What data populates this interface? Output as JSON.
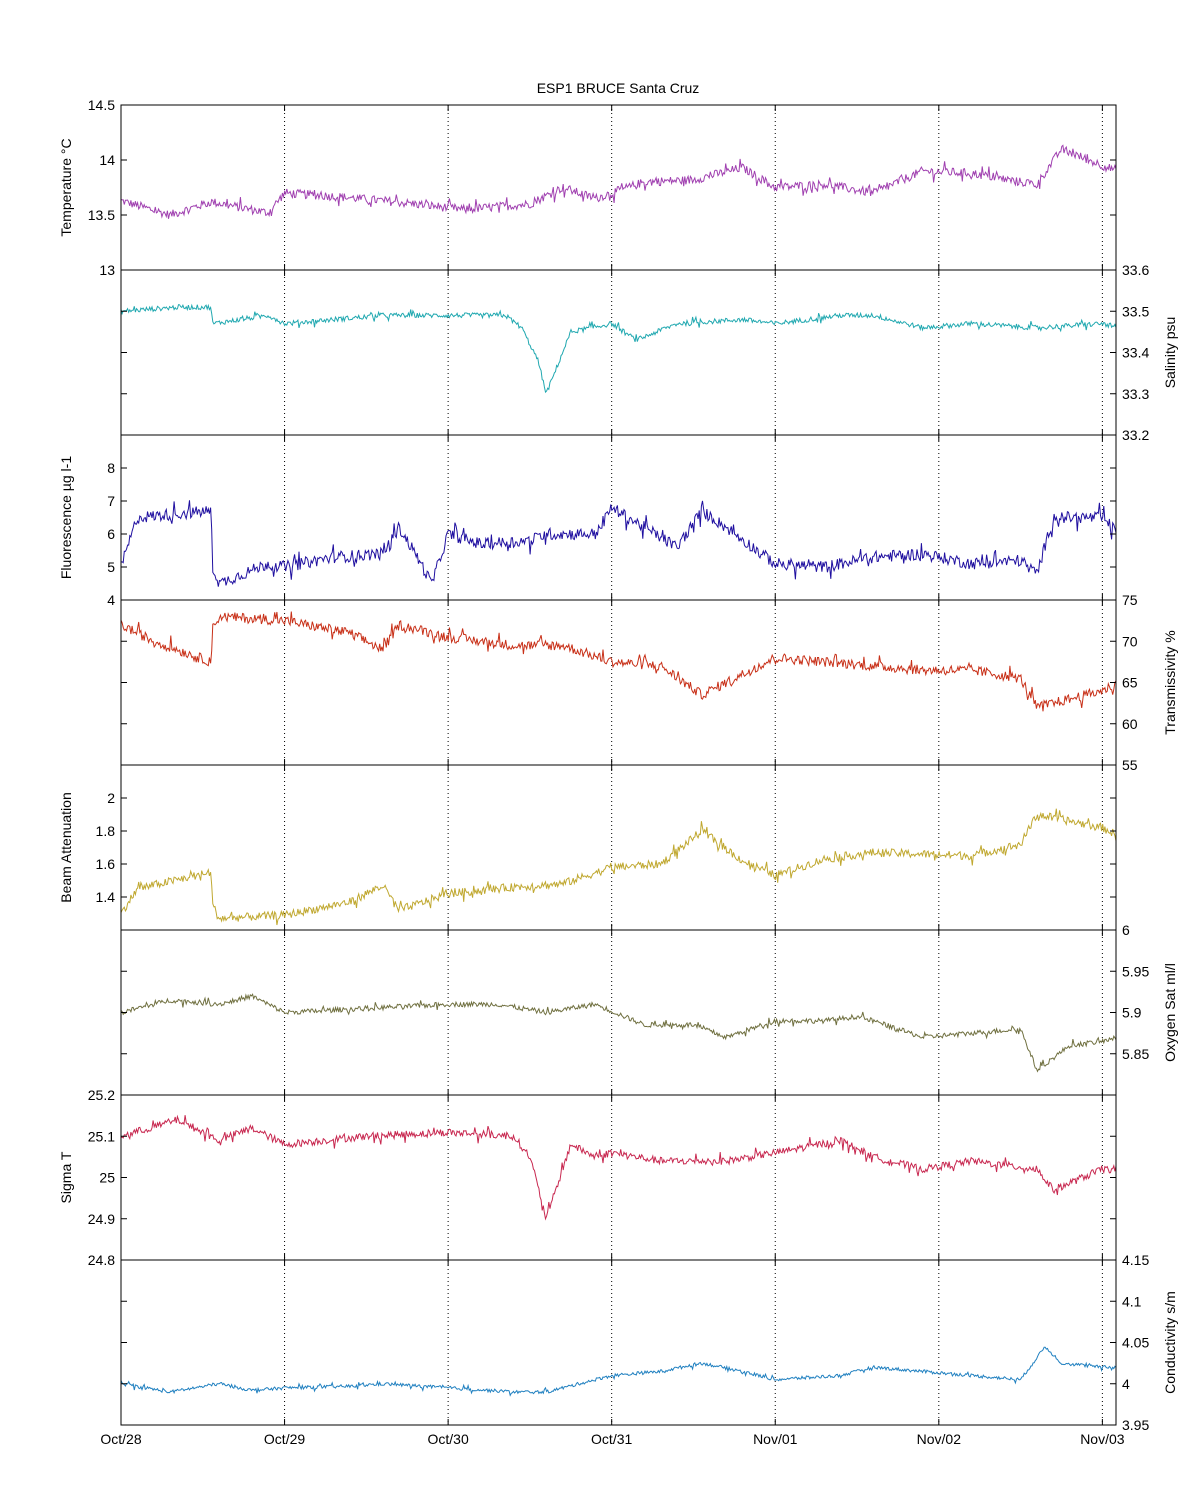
{
  "figure": {
    "title": "ESP1 BRUCE Santa Cruz"
  },
  "x_axis": {
    "tick_labels": [
      "Oct/28",
      "Oct/29",
      "Oct/30",
      "Oct/31",
      "Nov/01",
      "Nov/02",
      "Nov/03"
    ],
    "range": [
      "2006-10-28T00:00",
      "2006-11-03T02:00"
    ]
  },
  "chart_data": [
    {
      "type": "line",
      "ylabel": "Temperature °C",
      "axis_side": "left",
      "ylim": [
        13,
        14.5
      ],
      "yticks": [
        13,
        13.5,
        14,
        14.5
      ],
      "color": "#a040b0",
      "noise": 0.04,
      "series": [
        {
          "x": [
            0,
            0.3,
            0.55,
            0.9,
            1.0,
            1.3,
            1.6,
            1.8,
            2.1,
            2.5,
            2.7,
            2.9,
            3.2,
            3.5,
            3.8,
            4.0,
            4.3,
            4.6,
            4.9,
            5.2,
            5.5,
            5.6,
            5.75,
            6.0,
            6.1
          ],
          "y": [
            13.63,
            13.5,
            13.62,
            13.52,
            13.7,
            13.67,
            13.63,
            13.6,
            13.55,
            13.6,
            13.75,
            13.65,
            13.8,
            13.82,
            13.93,
            13.75,
            13.78,
            13.7,
            13.9,
            13.88,
            13.8,
            13.78,
            14.1,
            13.95,
            13.9
          ]
        }
      ]
    },
    {
      "type": "line",
      "ylabel": "Salinity psu",
      "axis_side": "right",
      "ylim": [
        33.2,
        33.6
      ],
      "yticks": [
        33.2,
        33.3,
        33.4,
        33.5,
        33.6
      ],
      "color": "#20a8b0",
      "noise": 0.006,
      "series": [
        {
          "x": [
            0,
            0.35,
            0.55,
            0.56,
            0.9,
            1.0,
            1.6,
            2.0,
            2.35,
            2.45,
            2.55,
            2.6,
            2.75,
            3.0,
            3.15,
            3.4,
            3.8,
            4.0,
            4.4,
            4.6,
            4.9,
            5.2,
            5.6,
            6.0,
            6.1
          ],
          "y": [
            33.5,
            33.51,
            33.51,
            33.47,
            33.49,
            33.47,
            33.49,
            33.49,
            33.49,
            33.46,
            33.38,
            33.3,
            33.45,
            33.47,
            33.43,
            33.47,
            33.48,
            33.47,
            33.49,
            33.49,
            33.46,
            33.47,
            33.46,
            33.47,
            33.46
          ]
        }
      ]
    },
    {
      "type": "line",
      "ylabel": "Fluorescence µg l-1",
      "axis_side": "left",
      "ylim": [
        4,
        9
      ],
      "yticks": [
        4,
        5,
        6,
        7,
        8
      ],
      "color": "#2010a0",
      "noise": 0.18,
      "series": [
        {
          "x": [
            0,
            0.1,
            0.55,
            0.56,
            0.6,
            0.9,
            1.0,
            1.3,
            1.6,
            1.7,
            1.8,
            1.9,
            2.0,
            2.2,
            2.5,
            2.6,
            2.9,
            3.0,
            3.4,
            3.55,
            3.7,
            4.0,
            4.3,
            4.6,
            4.9,
            5.2,
            5.5,
            5.6,
            5.7,
            6.0,
            6.1
          ],
          "y": [
            5.0,
            6.5,
            6.7,
            5.0,
            4.5,
            5.1,
            5.0,
            5.3,
            5.4,
            6.2,
            5.4,
            4.5,
            6.0,
            5.7,
            5.8,
            6.0,
            6.0,
            6.8,
            5.6,
            6.7,
            6.2,
            5.1,
            5.0,
            5.3,
            5.4,
            5.1,
            5.2,
            4.8,
            6.5,
            6.5,
            6.0
          ]
        }
      ]
    },
    {
      "type": "line",
      "ylabel": "Transmissivity %",
      "axis_side": "right",
      "ylim": [
        55,
        75
      ],
      "yticks": [
        55,
        60,
        65,
        70,
        75
      ],
      "color": "#c83018",
      "noise": 0.6,
      "series": [
        {
          "x": [
            0,
            0.2,
            0.55,
            0.56,
            0.6,
            1.0,
            1.4,
            1.6,
            1.7,
            2.0,
            2.4,
            2.7,
            3.0,
            3.3,
            3.55,
            3.8,
            4.0,
            4.3,
            4.6,
            4.9,
            5.2,
            5.5,
            5.6,
            6.0,
            6.1
          ],
          "y": [
            72.0,
            70.0,
            67.5,
            71.5,
            73.0,
            72.5,
            71.0,
            69.0,
            72.0,
            70.5,
            69.5,
            69.5,
            67.5,
            67.0,
            63.5,
            66.0,
            68.0,
            67.5,
            67.0,
            66.5,
            66.5,
            65.5,
            62.0,
            64.0,
            65.0
          ]
        }
      ]
    },
    {
      "type": "line",
      "ylabel": "Beam Attenuation",
      "axis_side": "left",
      "ylim": [
        1.2,
        2.2
      ],
      "yticks": [
        1.4,
        1.6,
        1.8,
        2.0
      ],
      "color": "#c0a830",
      "noise": 0.025,
      "series": [
        {
          "x": [
            0,
            0.1,
            0.55,
            0.56,
            0.6,
            1.0,
            1.4,
            1.6,
            1.7,
            2.0,
            2.4,
            2.7,
            3.0,
            3.3,
            3.55,
            3.8,
            4.0,
            4.3,
            4.6,
            4.9,
            5.2,
            5.5,
            5.6,
            6.0,
            6.1
          ],
          "y": [
            1.3,
            1.45,
            1.55,
            1.35,
            1.27,
            1.29,
            1.37,
            1.47,
            1.32,
            1.42,
            1.46,
            1.48,
            1.58,
            1.6,
            1.8,
            1.62,
            1.53,
            1.63,
            1.67,
            1.66,
            1.65,
            1.72,
            1.9,
            1.82,
            1.77
          ]
        }
      ]
    },
    {
      "type": "line",
      "ylabel": "Oxygen Sat ml/l",
      "axis_side": "right",
      "ylim": [
        5.8,
        6.0
      ],
      "yticks": [
        5.85,
        5.9,
        5.95,
        6.0
      ],
      "color": "#707040",
      "noise": 0.003,
      "series": [
        {
          "x": [
            0,
            0.3,
            0.6,
            0.8,
            0.9,
            1.0,
            1.5,
            2.0,
            2.3,
            2.6,
            2.9,
            3.2,
            3.5,
            3.7,
            4.0,
            4.3,
            4.5,
            4.6,
            4.9,
            5.2,
            5.5,
            5.6,
            5.8,
            6.0,
            6.1
          ],
          "y": [
            5.9,
            5.915,
            5.91,
            5.92,
            5.91,
            5.9,
            5.905,
            5.91,
            5.91,
            5.9,
            5.91,
            5.885,
            5.885,
            5.87,
            5.89,
            5.89,
            5.895,
            5.89,
            5.87,
            5.875,
            5.88,
            5.83,
            5.86,
            5.865,
            5.87
          ]
        }
      ]
    },
    {
      "type": "line",
      "ylabel": "Sigma T",
      "axis_side": "left",
      "ylim": [
        24.8,
        25.2
      ],
      "yticks": [
        24.8,
        24.9,
        25.0,
        25.1,
        25.2
      ],
      "color": "#c82850",
      "noise": 0.009,
      "series": [
        {
          "x": [
            0,
            0.35,
            0.6,
            0.8,
            1.0,
            1.5,
            2.0,
            2.4,
            2.5,
            2.6,
            2.75,
            2.9,
            3.0,
            3.3,
            3.7,
            4.0,
            4.4,
            4.6,
            4.9,
            5.2,
            5.6,
            5.7,
            6.0,
            6.1
          ],
          "y": [
            25.1,
            25.14,
            25.09,
            25.12,
            25.08,
            25.1,
            25.11,
            25.1,
            25.05,
            24.9,
            25.08,
            25.05,
            25.06,
            25.04,
            25.04,
            25.06,
            25.09,
            25.05,
            25.02,
            25.04,
            25.02,
            24.97,
            25.02,
            25.02
          ]
        }
      ]
    },
    {
      "type": "line",
      "ylabel": "Conductivity s/m",
      "axis_side": "right",
      "ylim": [
        3.95,
        4.15
      ],
      "yticks": [
        3.95,
        4.0,
        4.05,
        4.1,
        4.15
      ],
      "color": "#2080c0",
      "noise": 0.002,
      "series": [
        {
          "x": [
            0,
            0.3,
            0.6,
            0.8,
            1.0,
            1.4,
            1.6,
            2.0,
            2.4,
            2.6,
            2.8,
            3.0,
            3.3,
            3.55,
            3.8,
            4.0,
            4.4,
            4.6,
            4.9,
            5.2,
            5.5,
            5.65,
            5.75,
            6.0,
            6.1
          ],
          "y": [
            4.0,
            3.99,
            4.0,
            3.992,
            3.995,
            3.997,
            4.0,
            3.995,
            3.99,
            3.99,
            4.0,
            4.01,
            4.015,
            4.025,
            4.015,
            4.005,
            4.01,
            4.02,
            4.015,
            4.01,
            4.005,
            4.045,
            4.025,
            4.02,
            4.02
          ]
        }
      ]
    }
  ]
}
